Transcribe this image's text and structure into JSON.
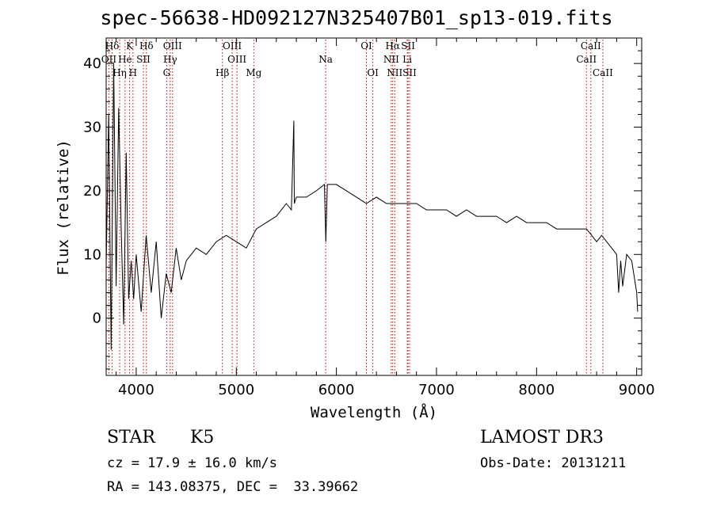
{
  "page": {
    "title": "spec-56638-HD092127N325407B01_sp13-019.fits",
    "class_label": "STAR",
    "subclass": "K5",
    "survey": "LAMOST DR3",
    "cz_text": "cz = 17.9 ± 16.0 km/s",
    "obs_date_text": "Obs-Date: 20131211",
    "radec_text": "RA = 143.08375, DEC =  33.39662"
  },
  "chart_data": {
    "type": "line",
    "title": "spec-56638-HD092127N325407B01_sp13-019.fits",
    "xlabel": "Wavelength (Å)",
    "ylabel": "Flux (relative)",
    "xlim": [
      3700,
      9050
    ],
    "ylim": [
      -9,
      44
    ],
    "x_ticks": [
      4000,
      5000,
      6000,
      7000,
      8000,
      9000
    ],
    "y_ticks": [
      0,
      10,
      20,
      30,
      40
    ],
    "grid": false,
    "series": [
      {
        "name": "flux",
        "x": [
          3700,
          3725,
          3750,
          3775,
          3800,
          3825,
          3850,
          3875,
          3900,
          3925,
          3950,
          3975,
          4000,
          4050,
          4100,
          4150,
          4200,
          4250,
          4300,
          4350,
          4400,
          4450,
          4500,
          4600,
          4700,
          4800,
          4900,
          5000,
          5100,
          5200,
          5300,
          5400,
          5500,
          5550,
          5575,
          5580,
          5600,
          5700,
          5800,
          5880,
          5895,
          5910,
          6000,
          6100,
          6200,
          6300,
          6400,
          6500,
          6563,
          6600,
          6700,
          6800,
          6900,
          7000,
          7100,
          7200,
          7300,
          7400,
          7500,
          7600,
          7700,
          7800,
          7900,
          8000,
          8100,
          8200,
          8300,
          8400,
          8500,
          8550,
          8600,
          8650,
          8700,
          8750,
          8800,
          8820,
          8840,
          8860,
          8900,
          8950,
          9000,
          9010
        ],
        "y": [
          8,
          32,
          -5,
          40,
          5,
          33,
          14,
          -1,
          26,
          3,
          9,
          3,
          10,
          1,
          13,
          4,
          12,
          0,
          7,
          4,
          11,
          6,
          9,
          11,
          10,
          12,
          13,
          12,
          11,
          14,
          15,
          16,
          18,
          17,
          31,
          18,
          19,
          19,
          20,
          21,
          12,
          21,
          21,
          20,
          19,
          18,
          19,
          18,
          18,
          18,
          18,
          18,
          17,
          17,
          17,
          16,
          17,
          16,
          16,
          16,
          15,
          16,
          15,
          15,
          15,
          14,
          14,
          14,
          14,
          13,
          12,
          13,
          12,
          11,
          10,
          4,
          9,
          5,
          10,
          9,
          4,
          1
        ]
      }
    ],
    "line_markers": [
      {
        "label": "Hδ",
        "x": 3760,
        "row": 0
      },
      {
        "label": "K",
        "x": 3934,
        "row": 0
      },
      {
        "label": "Hδ",
        "x": 4102,
        "row": 0
      },
      {
        "label": "OIII",
        "x": 4363,
        "row": 0
      },
      {
        "label": "OIII",
        "x": 4959,
        "row": 0
      },
      {
        "label": "OI",
        "x": 6300,
        "row": 0
      },
      {
        "label": "Hα",
        "x": 6563,
        "row": 0
      },
      {
        "label": "SII",
        "x": 6716,
        "row": 0
      },
      {
        "label": "CaII",
        "x": 8542,
        "row": 0
      },
      {
        "label": "OII",
        "x": 3727,
        "row": 1
      },
      {
        "label": "He",
        "x": 3889,
        "row": 1
      },
      {
        "label": "SII",
        "x": 4072,
        "row": 1
      },
      {
        "label": "Hγ",
        "x": 4340,
        "row": 1
      },
      {
        "label": "OIII",
        "x": 5007,
        "row": 1
      },
      {
        "label": "Na",
        "x": 5893,
        "row": 1
      },
      {
        "label": "NII",
        "x": 6548,
        "row": 1
      },
      {
        "label": "Li",
        "x": 6708,
        "row": 1
      },
      {
        "label": "CaII",
        "x": 8498,
        "row": 1
      },
      {
        "label": "Hη",
        "x": 3835,
        "row": 2
      },
      {
        "label": "H",
        "x": 3968,
        "row": 2
      },
      {
        "label": "G",
        "x": 4305,
        "row": 2
      },
      {
        "label": "Hβ",
        "x": 4861,
        "row": 2
      },
      {
        "label": "Mg",
        "x": 5175,
        "row": 2
      },
      {
        "label": "OI",
        "x": 6364,
        "row": 2
      },
      {
        "label": "NII",
        "x": 6583,
        "row": 2
      },
      {
        "label": "SII",
        "x": 6731,
        "row": 2
      },
      {
        "label": "CaII",
        "x": 8662,
        "row": 2
      }
    ],
    "line_color": "#000000",
    "marker_color": "#cc0000"
  }
}
